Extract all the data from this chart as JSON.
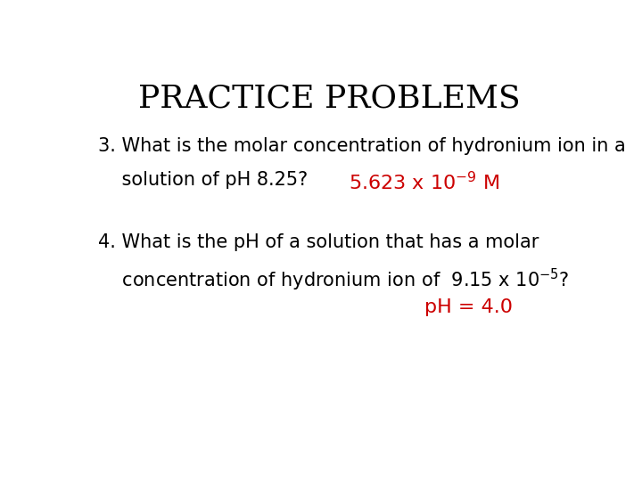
{
  "title": "PRACTICE PROBLEMS",
  "title_fontsize": 26,
  "title_color": "#000000",
  "background_color": "#ffffff",
  "q3_line1": "3. What is the molar concentration of hydronium ion in a",
  "q3_line2": "    solution of pH 8.25?",
  "q3_answer_color": "#cc0000",
  "q4_line1": "4. What is the pH of a solution that has a molar",
  "q4_line2": "    concentration of hydronium ion of  9.15 x 10",
  "q4_line2_sup": "-5",
  "q4_line2_end": "?",
  "q4_answer": "pH = 4.0",
  "q4_answer_color": "#cc0000",
  "text_fontsize": 15,
  "text_color": "#000000"
}
